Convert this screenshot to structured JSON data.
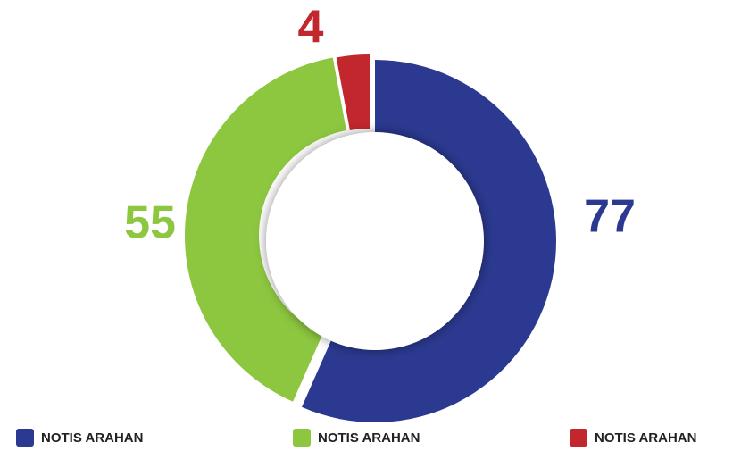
{
  "chart_data": {
    "type": "donut",
    "categories": [
      "NOTIS ARAHAN",
      "NOTIS ARAHAN",
      "NOTIS ARAHAN"
    ],
    "values": [
      77,
      55,
      4
    ],
    "colors": [
      "#2b3990",
      "#8dc63f",
      "#c1272d"
    ]
  }
}
